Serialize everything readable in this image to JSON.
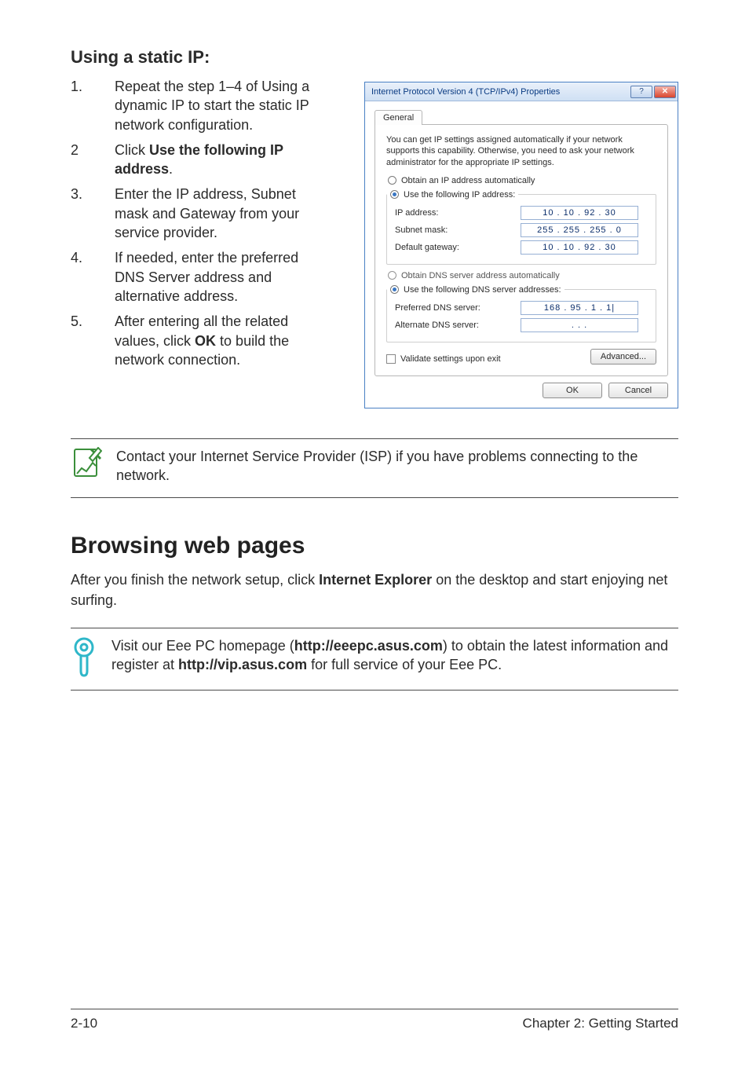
{
  "heading_static_ip": "Using a static IP:",
  "steps": [
    {
      "num": "1.",
      "html": "Repeat the step 1–4 of Using a dynamic IP to start the static IP network configuration."
    },
    {
      "num": "2",
      "html": "Click <b>Use the following IP address</b>."
    },
    {
      "num": "3.",
      "html": "Enter the IP address, Subnet mask and Gateway from your service provider."
    },
    {
      "num": "4.",
      "html": "If needed, enter the preferred DNS Server address and alternative address."
    },
    {
      "num": "5.",
      "html": "After entering all the related values, click <b>OK</b> to build the network connection."
    }
  ],
  "dialog": {
    "title": "Internet Protocol Version 4 (TCP/IPv4) Properties",
    "tab": "General",
    "desc": "You can get IP settings assigned automatically if your network supports this capability. Otherwise, you need to ask your network administrator for the appropriate IP settings.",
    "radio_obtain_ip": "Obtain an IP address automatically",
    "radio_use_ip": "Use the following IP address:",
    "ip_label": "IP address:",
    "ip_value": "10 . 10 . 92 . 30",
    "subnet_label": "Subnet mask:",
    "subnet_value": "255 . 255 . 255 .  0",
    "gateway_label": "Default gateway:",
    "gateway_value": "10 . 10 . 92 . 30",
    "radio_obtain_dns": "Obtain DNS server address automatically",
    "radio_use_dns": "Use the following DNS server addresses:",
    "pref_dns_label": "Preferred DNS server:",
    "pref_dns_value": "168 . 95 .  1  .  1|",
    "alt_dns_label": "Alternate DNS server:",
    "alt_dns_value": ".        .        .",
    "validate": "Validate settings upon exit",
    "advanced": "Advanced...",
    "ok": "OK",
    "cancel": "Cancel",
    "title_color": "#0a3e8a",
    "border_color": "#4a80c4",
    "ip_text_color": "#0b2e6b"
  },
  "note1": "Contact your Internet Service Provider (ISP) if you have problems connecting to the network.",
  "section_browsing": "Browsing web pages",
  "browsing_para_html": "After you finish the network setup, click <b>Internet Explorer</b> on the desktop and start enjoying net surfing.",
  "tip_html": "Visit our Eee PC homepage (<b>http://eeepc.asus.com</b>) to obtain the latest information and register at <b>http://vip.asus.com</b> for full service of your Eee PC.",
  "footer_left": "2-10",
  "footer_right": "Chapter 2: Getting Started",
  "colors": {
    "text": "#2b2b2b",
    "rule": "#4b4b4b",
    "note_icon": "#3b8f3b",
    "tip_icon": "#2fb7c9"
  }
}
